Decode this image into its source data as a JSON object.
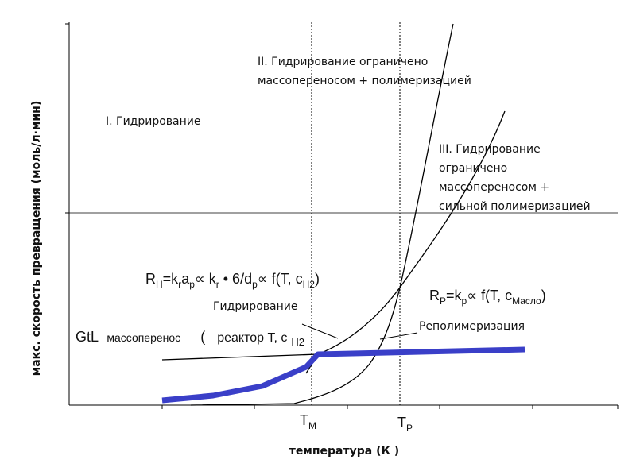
{
  "y_axis_label": "макс. скорость превращения (моль/л·мин)",
  "x_axis_label": "температура (К )",
  "regions": {
    "r1": "I. Гидрирование",
    "r2": [
      "II. Гидрирование ограничено",
      "массопереносом + полимеризацией"
    ],
    "r3": [
      "III. Гидрирование",
      "ограничено",
      "массопереносом +",
      "сильной полимеризацией"
    ]
  },
  "formula_h": [
    "R",
    "H",
    "=k",
    "r",
    "a",
    "p",
    "∝ k",
    "r",
    " • 6/d",
    "p",
    "∝ f(T, c",
    "H2",
    ")"
  ],
  "formula_p": [
    "R",
    "P",
    "=k",
    "p",
    "∝ f(T, c",
    "Масло",
    ")"
  ],
  "gtl": [
    "GtL",
    "массоперенос",
    "(",
    "реактор  T, c",
    "H2"
  ],
  "curve_labels": {
    "hydro": "Гидрирование",
    "repoly": "Реполимеризация"
  },
  "x_ticks": {
    "tm": [
      "T",
      "M"
    ],
    "tp": [
      "T",
      "P"
    ]
  }
}
